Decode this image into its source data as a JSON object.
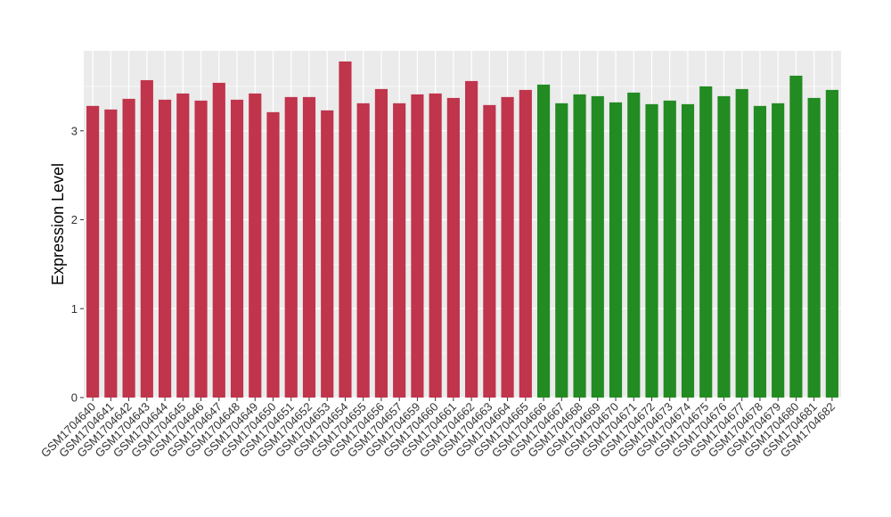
{
  "chart_data": {
    "type": "bar",
    "title": "",
    "xlabel": "",
    "ylabel": "Expression Level",
    "ylim": [
      0,
      3.9
    ],
    "yticks": [
      0,
      1,
      2,
      3
    ],
    "ytick_labels": [
      "0",
      "1",
      "2",
      "3"
    ],
    "grid": true,
    "legend": "none",
    "panel_background": "#ebebeb",
    "grid_color": "#ffffff",
    "categories": [
      "GSM1704640",
      "GSM1704641",
      "GSM1704642",
      "GSM1704643",
      "GSM1704644",
      "GSM1704645",
      "GSM1704646",
      "GSM1704647",
      "GSM1704648",
      "GSM1704649",
      "GSM1704650",
      "GSM1704651",
      "GSM1704652",
      "GSM1704653",
      "GSM1704654",
      "GSM1704655",
      "GSM1704656",
      "GSM1704657",
      "GSM1704659",
      "GSM1704660",
      "GSM1704661",
      "GSM1704662",
      "GSM1704663",
      "GSM1704664",
      "GSM1704665",
      "GSM1704666",
      "GSM1704667",
      "GSM1704668",
      "GSM1704669",
      "GSM1704670",
      "GSM1704671",
      "GSM1704672",
      "GSM1704673",
      "GSM1704674",
      "GSM1704675",
      "GSM1704676",
      "GSM1704677",
      "GSM1704678",
      "GSM1704679",
      "GSM1704680",
      "GSM1704681",
      "GSM1704682"
    ],
    "values": [
      3.28,
      3.24,
      3.36,
      3.57,
      3.35,
      3.42,
      3.34,
      3.54,
      3.35,
      3.42,
      3.21,
      3.38,
      3.38,
      3.23,
      3.78,
      3.31,
      3.47,
      3.31,
      3.41,
      3.42,
      3.37,
      3.56,
      3.29,
      3.38,
      3.46,
      3.52,
      3.31,
      3.41,
      3.39,
      3.32,
      3.43,
      3.3,
      3.34,
      3.3,
      3.5,
      3.39,
      3.47,
      3.28,
      3.31,
      3.62,
      3.37,
      3.46
    ],
    "colors": [
      "#c0344c",
      "#c0344c",
      "#c0344c",
      "#c0344c",
      "#c0344c",
      "#c0344c",
      "#c0344c",
      "#c0344c",
      "#c0344c",
      "#c0344c",
      "#c0344c",
      "#c0344c",
      "#c0344c",
      "#c0344c",
      "#c0344c",
      "#c0344c",
      "#c0344c",
      "#c0344c",
      "#c0344c",
      "#c0344c",
      "#c0344c",
      "#c0344c",
      "#c0344c",
      "#c0344c",
      "#c0344c",
      "#228b22",
      "#228b22",
      "#228b22",
      "#228b22",
      "#228b22",
      "#228b22",
      "#228b22",
      "#228b22",
      "#228b22",
      "#228b22",
      "#228b22",
      "#228b22",
      "#228b22",
      "#228b22",
      "#228b22",
      "#228b22",
      "#228b22"
    ]
  }
}
